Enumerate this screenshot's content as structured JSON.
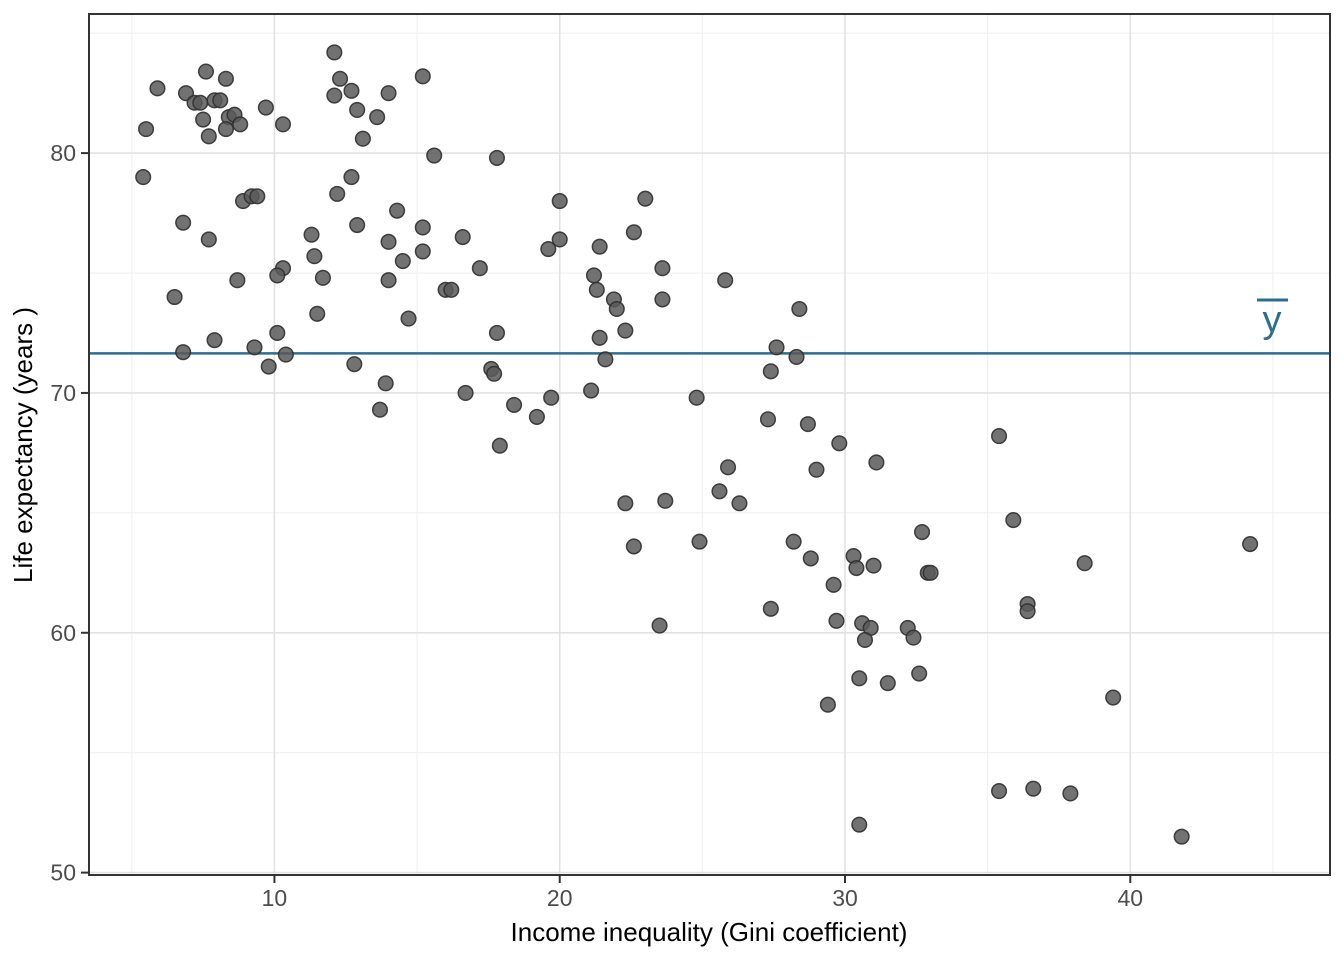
{
  "chart_data": {
    "type": "scatter",
    "title": "",
    "xlabel": "Income inequality (Gini coefficient)",
    "ylabel": "Life expectancy (years )",
    "x_ticks": [
      10,
      20,
      30,
      40
    ],
    "y_ticks": [
      50,
      60,
      70,
      80
    ],
    "x_minor_gridlines": [
      5,
      15,
      25,
      35,
      45
    ],
    "y_minor_gridlines": [
      55,
      65,
      75,
      85
    ],
    "xlim": [
      3.5,
      47
    ],
    "ylim": [
      49.9,
      85.8
    ],
    "grid": "major and minor, light gray on white panel",
    "legend": "none",
    "mean_line": {
      "label": "ȳ",
      "value": 71.65,
      "color": "#2d6d8e"
    },
    "series": [
      {
        "name": "countries",
        "points": [
          [
            5.9,
            82.7
          ],
          [
            7.6,
            83.4
          ],
          [
            8.3,
            83.1
          ],
          [
            6.9,
            82.5
          ],
          [
            7.2,
            82.1
          ],
          [
            7.4,
            82.1
          ],
          [
            7.9,
            82.2
          ],
          [
            8.1,
            82.2
          ],
          [
            7.5,
            81.4
          ],
          [
            8.4,
            81.5
          ],
          [
            8.6,
            81.6
          ],
          [
            8.8,
            81.2
          ],
          [
            8.3,
            81.0
          ],
          [
            7.7,
            80.7
          ],
          [
            5.5,
            81.0
          ],
          [
            9.7,
            81.9
          ],
          [
            10.3,
            81.2
          ],
          [
            12.1,
            84.2
          ],
          [
            12.3,
            83.1
          ],
          [
            12.1,
            82.4
          ],
          [
            12.7,
            82.6
          ],
          [
            12.9,
            81.8
          ],
          [
            13.6,
            81.5
          ],
          [
            14.0,
            82.5
          ],
          [
            13.1,
            80.6
          ],
          [
            15.2,
            83.2
          ],
          [
            15.6,
            79.9
          ],
          [
            17.8,
            79.8
          ],
          [
            5.4,
            79.0
          ],
          [
            6.8,
            77.1
          ],
          [
            7.7,
            76.4
          ],
          [
            8.9,
            78.0
          ],
          [
            9.2,
            78.2
          ],
          [
            9.4,
            78.2
          ],
          [
            12.2,
            78.3
          ],
          [
            12.7,
            79.0
          ],
          [
            12.9,
            77.0
          ],
          [
            11.3,
            76.6
          ],
          [
            11.4,
            75.7
          ],
          [
            14.0,
            76.3
          ],
          [
            14.3,
            77.6
          ],
          [
            14.5,
            75.5
          ],
          [
            15.2,
            76.9
          ],
          [
            15.2,
            75.9
          ],
          [
            16.6,
            76.5
          ],
          [
            17.2,
            75.2
          ],
          [
            10.3,
            75.2
          ],
          [
            10.1,
            74.9
          ],
          [
            11.7,
            74.8
          ],
          [
            8.7,
            74.7
          ],
          [
            6.5,
            74.0
          ],
          [
            14.0,
            74.7
          ],
          [
            16.0,
            74.3
          ],
          [
            16.2,
            74.3
          ],
          [
            20.0,
            78.0
          ],
          [
            23.0,
            78.1
          ],
          [
            22.6,
            76.7
          ],
          [
            20.0,
            76.4
          ],
          [
            19.6,
            76.0
          ],
          [
            21.4,
            76.1
          ],
          [
            23.6,
            75.2
          ],
          [
            21.2,
            74.9
          ],
          [
            21.3,
            74.3
          ],
          [
            21.9,
            73.9
          ],
          [
            23.6,
            73.9
          ],
          [
            25.8,
            74.7
          ],
          [
            11.5,
            73.3
          ],
          [
            14.7,
            73.1
          ],
          [
            10.1,
            72.5
          ],
          [
            7.9,
            72.2
          ],
          [
            6.8,
            71.7
          ],
          [
            9.3,
            71.9
          ],
          [
            10.4,
            71.6
          ],
          [
            9.8,
            71.1
          ],
          [
            12.8,
            71.2
          ],
          [
            17.8,
            72.5
          ],
          [
            17.6,
            71.0
          ],
          [
            17.7,
            70.8
          ],
          [
            13.9,
            70.4
          ],
          [
            16.7,
            70.0
          ],
          [
            13.7,
            69.3
          ],
          [
            18.4,
            69.5
          ],
          [
            17.9,
            67.8
          ],
          [
            22.0,
            73.5
          ],
          [
            21.4,
            72.3
          ],
          [
            22.3,
            72.6
          ],
          [
            21.6,
            71.4
          ],
          [
            21.1,
            70.1
          ],
          [
            19.7,
            69.8
          ],
          [
            19.2,
            69.0
          ],
          [
            24.8,
            69.8
          ],
          [
            27.6,
            71.9
          ],
          [
            28.3,
            71.5
          ],
          [
            28.4,
            73.5
          ],
          [
            27.4,
            70.9
          ],
          [
            27.3,
            68.9
          ],
          [
            28.7,
            68.7
          ],
          [
            29.8,
            67.9
          ],
          [
            31.1,
            67.1
          ],
          [
            29.0,
            66.8
          ],
          [
            25.9,
            66.9
          ],
          [
            25.6,
            65.9
          ],
          [
            26.3,
            65.4
          ],
          [
            22.3,
            65.4
          ],
          [
            23.7,
            65.5
          ],
          [
            22.6,
            63.6
          ],
          [
            24.9,
            63.8
          ],
          [
            28.2,
            63.8
          ],
          [
            28.8,
            63.1
          ],
          [
            30.3,
            63.2
          ],
          [
            30.4,
            62.7
          ],
          [
            31.0,
            62.8
          ],
          [
            32.7,
            64.2
          ],
          [
            32.9,
            62.5
          ],
          [
            33.0,
            62.5
          ],
          [
            29.6,
            62.0
          ],
          [
            35.4,
            68.2
          ],
          [
            35.9,
            64.7
          ],
          [
            38.4,
            62.9
          ],
          [
            44.2,
            63.7
          ],
          [
            27.4,
            61.0
          ],
          [
            23.5,
            60.3
          ],
          [
            29.7,
            60.5
          ],
          [
            30.6,
            60.4
          ],
          [
            30.9,
            60.2
          ],
          [
            30.7,
            59.7
          ],
          [
            32.2,
            60.2
          ],
          [
            32.4,
            59.8
          ],
          [
            30.5,
            58.1
          ],
          [
            31.5,
            57.9
          ],
          [
            32.6,
            58.3
          ],
          [
            29.4,
            57.0
          ],
          [
            30.5,
            52.0
          ],
          [
            36.4,
            61.2
          ],
          [
            36.4,
            60.9
          ],
          [
            39.4,
            57.3
          ],
          [
            35.4,
            53.4
          ],
          [
            36.6,
            53.5
          ],
          [
            37.9,
            53.3
          ],
          [
            41.8,
            51.5
          ]
        ]
      }
    ]
  },
  "style": {
    "point_fill": "#595959",
    "point_fill_opacity": 0.85,
    "point_stroke": "#303030",
    "grid_major_color": "#e2e2e2",
    "grid_minor_color": "#f0f0f0",
    "panel_border_color": "#333333",
    "tick_color": "#333333",
    "tick_label_color": "#4d4d4d",
    "axis_title_color": "#000000"
  }
}
